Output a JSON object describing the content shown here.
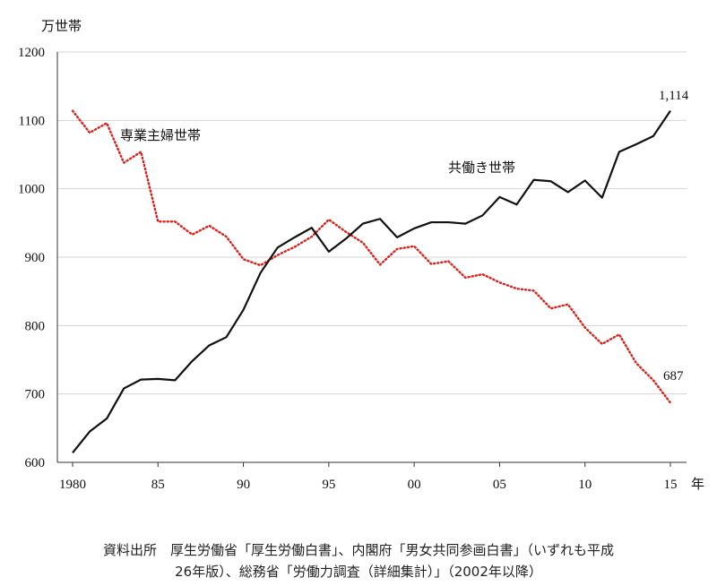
{
  "chart_data": {
    "type": "line",
    "y_unit_label": "万世帯",
    "x_unit_label": "年",
    "ylim": [
      600,
      1200
    ],
    "y_ticks": [
      600,
      700,
      800,
      900,
      1000,
      1100,
      1200
    ],
    "xlim": [
      1980,
      2015
    ],
    "x_ticks": [
      {
        "year": 1980,
        "label": "1980"
      },
      {
        "year": 1985,
        "label": "85"
      },
      {
        "year": 1990,
        "label": "90"
      },
      {
        "year": 1995,
        "label": "95"
      },
      {
        "year": 2000,
        "label": "00"
      },
      {
        "year": 2005,
        "label": "05"
      },
      {
        "year": 2010,
        "label": "10"
      },
      {
        "year": 2015,
        "label": "15"
      }
    ],
    "grid": true,
    "x": [
      1980,
      1981,
      1982,
      1983,
      1984,
      1985,
      1986,
      1987,
      1988,
      1989,
      1990,
      1991,
      1992,
      1993,
      1994,
      1995,
      1996,
      1997,
      1998,
      1999,
      2000,
      2001,
      2002,
      2003,
      2004,
      2005,
      2006,
      2007,
      2008,
      2009,
      2010,
      2011,
      2012,
      2013,
      2014,
      2015
    ],
    "series": [
      {
        "name": "専業主婦世帯",
        "color": "#e0201b",
        "style": "dotted",
        "end_label": "687",
        "values": [
          1114,
          1082,
          1096,
          1038,
          1054,
          952,
          952,
          933,
          946,
          930,
          897,
          888,
          903,
          915,
          930,
          955,
          937,
          921,
          889,
          912,
          916,
          890,
          894,
          870,
          875,
          863,
          854,
          851,
          825,
          831,
          797,
          773,
          787,
          745,
          720,
          687
        ]
      },
      {
        "name": "共働き世帯",
        "color": "#111111",
        "style": "solid",
        "end_label": "1,114",
        "values": [
          614,
          645,
          664,
          708,
          721,
          722,
          720,
          748,
          771,
          783,
          823,
          877,
          914,
          929,
          943,
          908,
          927,
          949,
          956,
          929,
          942,
          951,
          951,
          949,
          961,
          988,
          977,
          1013,
          1011,
          995,
          1012,
          987,
          1054,
          1065,
          1077,
          1114
        ]
      }
    ]
  },
  "source_lines": [
    "資料出所　厚生労働省「厚生労働白書」、内閣府「男女共同参画白書」（いずれも平成",
    "26年版）、総務省「労働力調査（詳細集計）」（2002年以降）"
  ]
}
